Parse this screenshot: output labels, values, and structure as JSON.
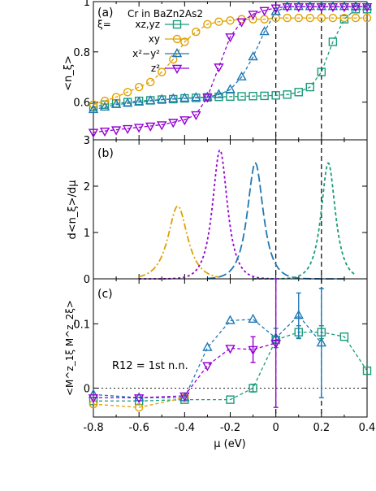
{
  "figure": {
    "xlabel": "μ (eV)",
    "xlim": [
      -0.8,
      0.4
    ],
    "xticks": [
      "-0.8",
      "-0.6",
      "-0.4",
      "-0.2",
      "0",
      "0.2",
      "0.4"
    ],
    "vlines": [
      0,
      0.2
    ]
  },
  "series_styles": {
    "xz_yz": {
      "color": "#1a9c7a",
      "marker": "square",
      "dash": "4,3"
    },
    "xy": {
      "color": "#e0a000",
      "marker": "circle",
      "dash": "8,3,2,3"
    },
    "x2y2": {
      "color": "#1f78b4",
      "marker": "triangle-up",
      "dash": "10,4"
    },
    "z2": {
      "color": "#9400d3",
      "marker": "triangle-down",
      "dash": "3,3"
    }
  },
  "chart_data": [
    {
      "panel_label": "(a)",
      "type": "line",
      "ylabel": "<n_ξ>",
      "ylim": [
        0.45,
        1.0
      ],
      "yticks": [
        "0.6",
        "0.8",
        "1"
      ],
      "title_annotation": "Cr in BaZn2As2",
      "legend": {
        "placement": "top-left",
        "header": "ξ="
      },
      "series": [
        {
          "key": "xz_yz",
          "name": "xz,yz",
          "x": [
            -0.8,
            -0.75,
            -0.7,
            -0.65,
            -0.6,
            -0.55,
            -0.5,
            -0.45,
            -0.4,
            -0.35,
            -0.3,
            -0.25,
            -0.2,
            -0.15,
            -0.1,
            -0.05,
            0.0,
            0.05,
            0.1,
            0.15,
            0.2,
            0.25,
            0.3,
            0.35,
            0.4
          ],
          "y": [
            0.58,
            0.59,
            0.595,
            0.6,
            0.605,
            0.607,
            0.61,
            0.612,
            0.615,
            0.617,
            0.619,
            0.621,
            0.622,
            0.623,
            0.624,
            0.625,
            0.627,
            0.63,
            0.64,
            0.66,
            0.72,
            0.84,
            0.93,
            0.97,
            0.97
          ]
        },
        {
          "key": "xy",
          "name": "xy",
          "x": [
            -0.8,
            -0.75,
            -0.7,
            -0.65,
            -0.6,
            -0.55,
            -0.5,
            -0.45,
            -0.4,
            -0.35,
            -0.3,
            -0.25,
            -0.2,
            -0.15,
            -0.1,
            -0.05,
            0.0,
            0.05,
            0.1,
            0.15,
            0.2,
            0.25,
            0.3,
            0.35,
            0.4
          ],
          "y": [
            0.59,
            0.605,
            0.62,
            0.64,
            0.66,
            0.68,
            0.72,
            0.77,
            0.84,
            0.88,
            0.91,
            0.92,
            0.925,
            0.93,
            0.93,
            0.93,
            0.935,
            0.935,
            0.935,
            0.935,
            0.935,
            0.935,
            0.935,
            0.935,
            0.935
          ]
        },
        {
          "key": "x2y2",
          "name": "x²−y²",
          "x": [
            -0.8,
            -0.75,
            -0.7,
            -0.65,
            -0.6,
            -0.55,
            -0.5,
            -0.45,
            -0.4,
            -0.35,
            -0.3,
            -0.25,
            -0.2,
            -0.15,
            -0.1,
            -0.05,
            0.0,
            0.05,
            0.1,
            0.15,
            0.2,
            0.25,
            0.3,
            0.35,
            0.4
          ],
          "y": [
            0.57,
            0.58,
            0.59,
            0.595,
            0.6,
            0.605,
            0.61,
            0.613,
            0.615,
            0.618,
            0.62,
            0.63,
            0.65,
            0.7,
            0.78,
            0.88,
            0.96,
            0.98,
            0.98,
            0.98,
            0.98,
            0.98,
            0.98,
            0.98,
            0.98
          ]
        },
        {
          "key": "z2",
          "name": "z²",
          "x": [
            -0.8,
            -0.75,
            -0.7,
            -0.65,
            -0.6,
            -0.55,
            -0.5,
            -0.45,
            -0.4,
            -0.35,
            -0.3,
            -0.25,
            -0.2,
            -0.15,
            -0.1,
            -0.05,
            0.0,
            0.05,
            0.1,
            0.15,
            0.2,
            0.25,
            0.3,
            0.35,
            0.4
          ],
          "y": [
            0.48,
            0.485,
            0.49,
            0.495,
            0.5,
            0.505,
            0.51,
            0.52,
            0.53,
            0.55,
            0.62,
            0.74,
            0.86,
            0.92,
            0.95,
            0.965,
            0.975,
            0.98,
            0.98,
            0.98,
            0.98,
            0.98,
            0.98,
            0.98,
            0.98
          ]
        }
      ]
    },
    {
      "panel_label": "(b)",
      "type": "line",
      "ylabel": "d<n_ξ>/dμ",
      "ylim": [
        0,
        3
      ],
      "yticks": [
        "0",
        "1",
        "2",
        "3"
      ],
      "series": [
        {
          "key": "xy",
          "center": -0.43,
          "height": 1.57,
          "width": 0.055,
          "xrange": [
            -0.6,
            -0.25
          ]
        },
        {
          "key": "z2",
          "center": -0.245,
          "height": 2.78,
          "width": 0.042,
          "xrange": [
            -0.6,
            0.0
          ]
        },
        {
          "key": "x2y2",
          "center": -0.09,
          "height": 2.5,
          "width": 0.045,
          "xrange": [
            -0.3,
            0.3
          ]
        },
        {
          "key": "xz_yz",
          "center": 0.23,
          "height": 2.5,
          "width": 0.04,
          "xrange": [
            -0.1,
            0.35
          ]
        }
      ]
    },
    {
      "panel_label": "(c)",
      "type": "line",
      "ylabel": "<M^z_1ξ M^z_2ξ>",
      "ylim": [
        -0.045,
        0.17
      ],
      "yticks": [
        "0",
        "0.1"
      ],
      "annotation": "R12 = 1st n.n.",
      "zero_line": true,
      "series": [
        {
          "key": "xz_yz",
          "x": [
            -0.8,
            -0.6,
            -0.4,
            -0.2,
            -0.1,
            0.0,
            0.1,
            0.2,
            0.3,
            0.4
          ],
          "y": [
            -0.02,
            -0.02,
            -0.018,
            -0.018,
            0.0,
            0.075,
            0.087,
            0.087,
            0.08,
            0.027
          ],
          "yerr": [
            0,
            0,
            0,
            0,
            0.006,
            0.005,
            0.01,
            0.01,
            0,
            0
          ]
        },
        {
          "key": "xy",
          "x": [
            -0.8,
            -0.6,
            -0.4
          ],
          "y": [
            -0.025,
            -0.03,
            -0.015
          ],
          "yerr": [
            0,
            0,
            0
          ]
        },
        {
          "key": "x2y2",
          "x": [
            -0.8,
            -0.6,
            -0.4,
            -0.3,
            -0.2,
            -0.1,
            0.0,
            0.1,
            0.2
          ],
          "y": [
            -0.01,
            -0.015,
            -0.015,
            0.063,
            0.105,
            0.107,
            0.078,
            0.113,
            0.07
          ],
          "yerr": [
            0,
            0,
            0,
            0,
            0,
            0,
            0.015,
            0.035,
            0.085
          ]
        },
        {
          "key": "z2",
          "x": [
            -0.8,
            -0.6,
            -0.4,
            -0.3,
            -0.2,
            -0.1,
            0.0
          ],
          "y": [
            -0.015,
            -0.015,
            -0.012,
            0.035,
            0.062,
            0.06,
            0.07
          ],
          "yerr": [
            0,
            0,
            0,
            0,
            0,
            0.02,
            0.1
          ]
        }
      ]
    }
  ]
}
